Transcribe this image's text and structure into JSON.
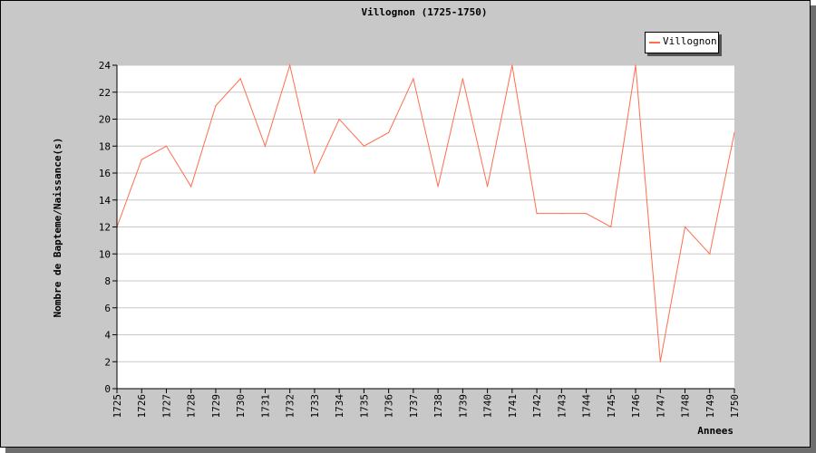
{
  "chart_data": {
    "type": "line",
    "title": "Villognon (1725-1750)",
    "xlabel": "Annees",
    "ylabel": "Nombre de Bapteme/Naissance(s)",
    "x": [
      "1725",
      "1726",
      "1727",
      "1728",
      "1729",
      "1730",
      "1731",
      "1732",
      "1733",
      "1734",
      "1735",
      "1736",
      "1737",
      "1738",
      "1739",
      "1740",
      "1741",
      "1742",
      "1743",
      "1744",
      "1745",
      "1746",
      "1747",
      "1748",
      "1749",
      "1750"
    ],
    "series": [
      {
        "name": "Villognon",
        "values": [
          12,
          17,
          18,
          15,
          21,
          23,
          18,
          24,
          16,
          20,
          18,
          19,
          23,
          15,
          23,
          15,
          24,
          13,
          13,
          13,
          12,
          24,
          2,
          12,
          10,
          19
        ]
      }
    ],
    "ylim": [
      0,
      24
    ],
    "yticks": [
      0,
      2,
      4,
      6,
      8,
      10,
      12,
      14,
      16,
      18,
      20,
      22,
      24
    ],
    "grid": true,
    "legend": "top-right",
    "colors": {
      "series": "#ff6e4e",
      "plot_bg": "#ffffff",
      "frame_bg": "#c8c8c8",
      "grid": "#c8c8c8"
    }
  }
}
